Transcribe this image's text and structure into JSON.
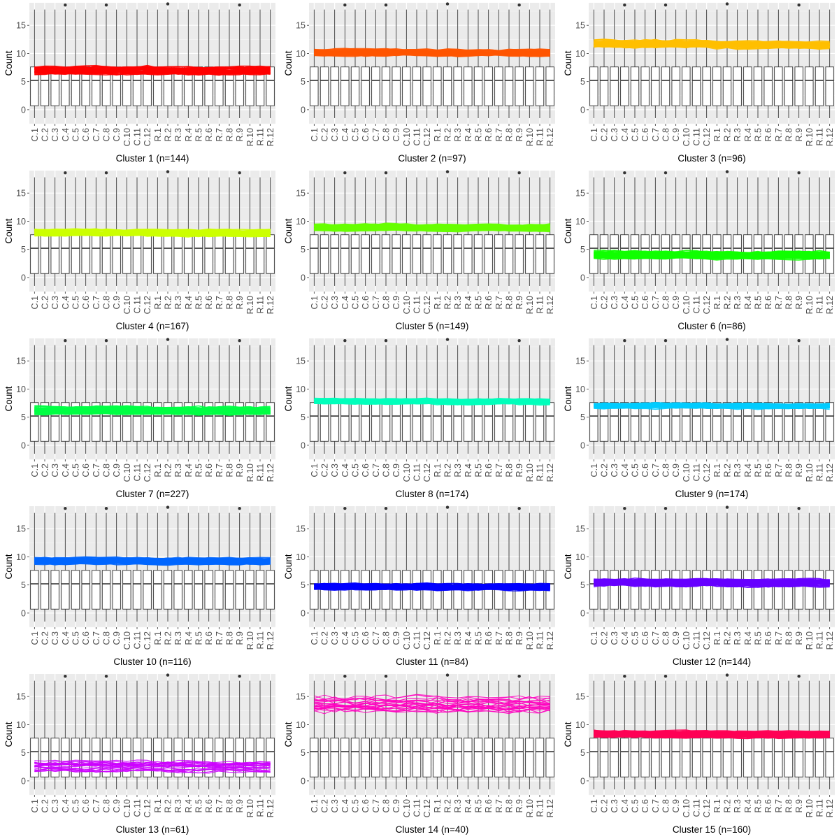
{
  "chart_data": {
    "type": "boxplot-with-lines",
    "ylabel": "Count",
    "ylim": [
      -2.5,
      19
    ],
    "yticks": [
      0,
      5,
      10,
      15
    ],
    "categories": [
      "C.1",
      "C.2",
      "C.3",
      "C.4",
      "C.5",
      "C.6",
      "C.7",
      "C.8",
      "C.9",
      "C.10",
      "C.11",
      "C.12",
      "R.1",
      "R.2",
      "R.3",
      "R.4",
      "R.5",
      "R.6",
      "R.7",
      "R.8",
      "R.9",
      "R.10",
      "R.11",
      "R.12"
    ],
    "boxplot": {
      "whisker_low": -1.5,
      "q1": 0.7,
      "median": 5.2,
      "q3": 7.6,
      "whisker_high": 17.8,
      "outliers": [
        {
          "category": "C.4",
          "value": 18.6
        },
        {
          "category": "C.8",
          "value": 18.6
        },
        {
          "category": "R.2",
          "value": 18.8
        },
        {
          "category": "R.9",
          "value": 18.6
        }
      ]
    },
    "panels": [
      {
        "title": "Cluster 1 (n=144)",
        "color": "#ff0000",
        "center": 7.0,
        "spread": 0.6,
        "thin": false
      },
      {
        "title": "Cluster 2 (n=97)",
        "color": "#ff5500",
        "center": 10.2,
        "spread": 0.5,
        "thin": false
      },
      {
        "title": "Cluster 3 (n=96)",
        "color": "#ffbf00",
        "center": 11.7,
        "spread": 0.6,
        "thin": false
      },
      {
        "title": "Cluster 4 (n=167)",
        "color": "#ccff00",
        "center": 8.0,
        "spread": 0.5,
        "thin": false
      },
      {
        "title": "Cluster 5 (n=149)",
        "color": "#66ff00",
        "center": 8.9,
        "spread": 0.5,
        "thin": false
      },
      {
        "title": "Cluster 6 (n=86)",
        "color": "#11ff00",
        "center": 4.0,
        "spread": 0.6,
        "thin": false
      },
      {
        "title": "Cluster 7 (n=227)",
        "color": "#00ff44",
        "center": 6.2,
        "spread": 0.6,
        "thin": false
      },
      {
        "title": "Cluster 8 (n=174)",
        "color": "#00ffbb",
        "center": 7.8,
        "spread": 0.4,
        "thin": false
      },
      {
        "title": "Cluster 9 (n=174)",
        "color": "#00ccff",
        "center": 7.0,
        "spread": 0.4,
        "thin": false
      },
      {
        "title": "Cluster 10 (n=116)",
        "color": "#0066ff",
        "center": 9.3,
        "spread": 0.5,
        "thin": false
      },
      {
        "title": "Cluster 11 (n=84)",
        "color": "#0000ff",
        "center": 4.7,
        "spread": 0.5,
        "thin": false
      },
      {
        "title": "Cluster 12 (n=144)",
        "color": "#6600ff",
        "center": 5.4,
        "spread": 0.6,
        "thin": false
      },
      {
        "title": "Cluster 13 (n=61)",
        "color": "#cc00ff",
        "center": 2.6,
        "spread": 0.9,
        "thin": true
      },
      {
        "title": "Cluster 14 (n=40)",
        "color": "#ff00bf",
        "center": 13.8,
        "spread": 1.4,
        "thin": true
      },
      {
        "title": "Cluster 15 (n=160)",
        "color": "#ff0055",
        "center": 8.3,
        "spread": 0.5,
        "thin": false
      }
    ]
  }
}
